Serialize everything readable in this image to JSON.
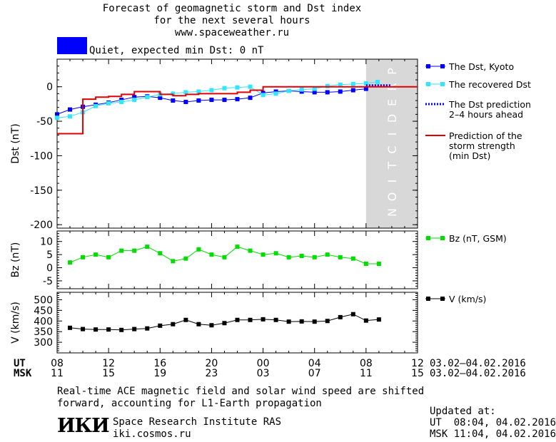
{
  "header": {
    "title_line1": "Forecast of geomagnetic storm and Dst index",
    "title_line2": "for the next several hours",
    "website": "www.spaceweather.ru",
    "status_text": "Quiet, expected min Dst: 0 nT",
    "status_color": "#0000ff"
  },
  "colors": {
    "dst_kyoto": "#0000ff",
    "dst_recovered": "#33e5ff",
    "dst_prediction": "#0000ff",
    "storm_strength": "#e00000",
    "bz": "#00dd00",
    "speed": "#000000",
    "prediction_band": "#d8d8d8"
  },
  "chart_data": [
    {
      "type": "line",
      "ylabel": "Dst (nT)",
      "ylim": [
        -205,
        40
      ],
      "xlim": [
        8,
        36
      ],
      "yticks": [
        0,
        -50,
        -100,
        -150,
        -200
      ],
      "prediction_zone": {
        "from": 32.0,
        "to": 36,
        "label": "PREDICTION"
      },
      "series": [
        {
          "name": "The Dst, Kyoto",
          "marker": "square",
          "x": [
            8,
            9,
            10,
            11,
            12,
            13,
            14,
            15,
            16,
            17,
            18,
            19,
            20,
            21,
            22,
            23,
            24,
            25,
            26,
            27,
            28,
            29,
            30,
            31,
            32
          ],
          "y": [
            -40,
            -33,
            -29,
            -26,
            -23,
            -19,
            -15,
            -14,
            -16,
            -20,
            -22,
            -20,
            -19,
            -19,
            -18,
            -16,
            -9,
            -7,
            -6,
            -7,
            -8,
            -8,
            -7,
            -5,
            -3
          ]
        },
        {
          "name": "The recovered Dst",
          "marker": "square",
          "x": [
            8,
            9,
            10,
            11,
            12,
            13,
            14,
            15,
            16,
            17,
            18,
            19,
            20,
            21,
            22,
            23,
            24,
            25,
            26,
            27,
            28,
            29,
            30,
            31,
            32,
            32.9
          ],
          "y": [
            -45,
            -43,
            -37,
            -28,
            -24,
            -22,
            -19,
            -15,
            -11,
            -10,
            -8,
            -7,
            -5,
            -2,
            -1,
            0,
            -12,
            -10,
            -6,
            -4,
            -3,
            1,
            3,
            4,
            5,
            7
          ]
        },
        {
          "name": "The Dst prediction 2–4 hours ahead",
          "style": "dotted",
          "x": [
            32.0,
            34.0
          ],
          "y": [
            2,
            2
          ]
        },
        {
          "name": "Prediction of the storm strength (min Dst)",
          "style": "step",
          "x": [
            8,
            9,
            10,
            11,
            12,
            13,
            14,
            15,
            16,
            17,
            18,
            19,
            20,
            21,
            22,
            23,
            24,
            25,
            26,
            27,
            28,
            29,
            30,
            31,
            32,
            33,
            34,
            35,
            36
          ],
          "y": [
            -68,
            -68,
            -18,
            -15,
            -14,
            -11,
            -7,
            -7,
            -11,
            -13,
            -11,
            -10,
            -10,
            -10,
            -8,
            -5,
            0,
            0,
            0,
            0,
            0,
            0,
            0,
            0,
            0,
            0,
            0,
            0,
            0
          ]
        }
      ],
      "legend": [
        {
          "series": "dst_kyoto",
          "lines": [
            "The Dst, Kyoto"
          ]
        },
        {
          "series": "dst_recovered",
          "lines": [
            "The recovered Dst"
          ]
        },
        {
          "series": "dst_prediction",
          "lines": [
            "The Dst prediction",
            "2–4 hours ahead"
          ]
        },
        {
          "series": "storm_strength",
          "lines": [
            "Prediction of the",
            "storm strength",
            "(min Dst)"
          ]
        }
      ]
    },
    {
      "type": "line",
      "ylabel": "Bz (nT)",
      "ylim": [
        -8,
        14
      ],
      "xlim": [
        8,
        36
      ],
      "yticks": [
        10,
        5,
        0,
        -5
      ],
      "series": [
        {
          "name": "Bz (nT, GSM)",
          "marker": "square",
          "x": [
            9,
            10,
            11,
            12,
            13,
            14,
            15,
            16,
            17,
            18,
            19,
            20,
            21,
            22,
            23,
            24,
            25,
            26,
            27,
            28,
            29,
            30,
            31,
            32,
            33
          ],
          "y": [
            2,
            4,
            5,
            4,
            6.5,
            6.5,
            8,
            5.5,
            2.5,
            3.5,
            7,
            5,
            4,
            8,
            6.5,
            5,
            5.5,
            4,
            4.5,
            4,
            5,
            4,
            3.5,
            1.5,
            1.5
          ]
        }
      ],
      "legend": [
        {
          "series": "bz",
          "lines": [
            "Bz (nT, GSM)"
          ]
        }
      ]
    },
    {
      "type": "line",
      "ylabel": "V (km/s)",
      "ylim": [
        250,
        535
      ],
      "xlim": [
        8,
        36
      ],
      "yticks": [
        500,
        450,
        400,
        350,
        300
      ],
      "series": [
        {
          "name": "V (km/s)",
          "marker": "square",
          "x": [
            9,
            10,
            11,
            12,
            13,
            14,
            15,
            16,
            17,
            18,
            19,
            20,
            21,
            22,
            23,
            24,
            25,
            26,
            27,
            28,
            29,
            30,
            31,
            32,
            33
          ],
          "y": [
            368,
            362,
            360,
            360,
            358,
            362,
            365,
            378,
            385,
            405,
            385,
            380,
            390,
            405,
            405,
            408,
            405,
            397,
            398,
            397,
            400,
            418,
            432,
            402,
            407
          ]
        }
      ],
      "legend": [
        {
          "series": "speed",
          "lines": [
            "V (km/s)"
          ]
        }
      ]
    }
  ],
  "axis": {
    "ut_label": "UT",
    "msk_label": "MSK",
    "ut_ticks": [
      "08",
      "12",
      "16",
      "20",
      "00",
      "04",
      "08",
      "12"
    ],
    "msk_ticks": [
      "11",
      "15",
      "19",
      "23",
      "03",
      "07",
      "11",
      "15"
    ],
    "date_range_ut": "03.02–04.02.2016",
    "date_range_msk": "03.02–04.02.2016"
  },
  "footer": {
    "note_line1": "Real-time ACE magnetic field and solar wind speed are shifted",
    "note_line2": "forward, accounting for L1-Earth propagation",
    "logo_text": "ИКИ",
    "institute": "Space Research Institute RAS",
    "institute_site": "iki.cosmos.ru",
    "updated_label": "Updated at:",
    "updated_ut": "UT  08:04, 04.02.2016",
    "updated_msk": "MSK 11:04, 04.02.2016"
  }
}
